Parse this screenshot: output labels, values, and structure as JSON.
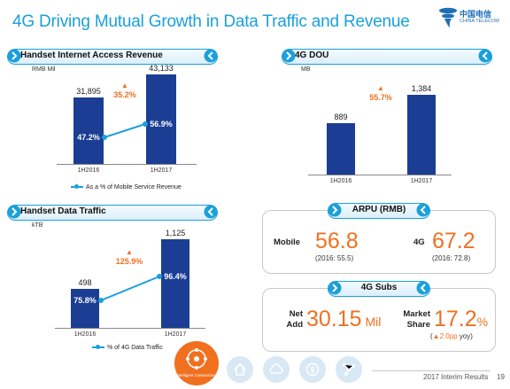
{
  "page": {
    "title": "4G Driving Mutual Growth in Data Traffic and Revenue",
    "logo_cn": "中国电信",
    "logo_en": "CHINA TELECOM",
    "footer_text": "2017 Interim Results",
    "page_number": "19",
    "badge_text": "Intelligent Connections"
  },
  "colors": {
    "title": "#1aa0dc",
    "bar": "#1b3e94",
    "line": "#1aa0dc",
    "accent": "#f07020"
  },
  "panels": {
    "revenue": {
      "title": "Handset Internet Access Revenue",
      "unit": "RMB Mil",
      "legend": "As a % of Mobile Service Revenue"
    },
    "dou": {
      "title": "4G DOU",
      "unit": "MB"
    },
    "traffic": {
      "title": "Handset Data Traffic",
      "unit": "kTB",
      "legend": "% of 4G Data Traffic"
    }
  },
  "arpu": {
    "title": "ARPU (RMB)",
    "mobile_label": "Mobile",
    "mobile_value": "56.8",
    "mobile_prev": "(2016: 55.5)",
    "g4_label": "4G",
    "g4_value": "67.2",
    "g4_prev": "(2016: 72.8)"
  },
  "subs": {
    "title": "4G Subs",
    "net_add_label_1": "Net",
    "net_add_label_2": "Add",
    "net_add_value": "30.15",
    "net_add_unit": "Mil",
    "share_label_1": "Market",
    "share_label_2": "Share",
    "share_value": "17.2",
    "share_unit": "%",
    "share_change": "2.0pp",
    "share_change_suffix": "yoy)",
    "share_change_prefix": "("
  },
  "chart_data": [
    {
      "type": "bar",
      "title": "Handset Internet Access Revenue",
      "ylabel": "RMB Mil",
      "categories": [
        "1H2016",
        "1H2017"
      ],
      "values": [
        31895,
        43133
      ],
      "value_labels": [
        "31,895",
        "43,133"
      ],
      "growth_label": "35.2%",
      "line_series": {
        "name": "As a % of Mobile Service Revenue",
        "values": [
          47.2,
          56.9
        ],
        "labels": [
          "47.2%",
          "56.9%"
        ]
      },
      "ylim": [
        0,
        50000
      ]
    },
    {
      "type": "bar",
      "title": "4G DOU",
      "ylabel": "MB",
      "categories": [
        "1H2016",
        "1H2017"
      ],
      "values": [
        889,
        1384
      ],
      "value_labels": [
        "889",
        "1,384"
      ],
      "growth_label": "55.7%",
      "ylim": [
        0,
        1500
      ]
    },
    {
      "type": "bar",
      "title": "Handset Data Traffic",
      "ylabel": "kTB",
      "categories": [
        "1H2016",
        "1H2017"
      ],
      "values": [
        498,
        1125
      ],
      "value_labels": [
        "498",
        "1,125"
      ],
      "growth_label": "125.9%",
      "line_series": {
        "name": "% of 4G Data Traffic",
        "values": [
          75.8,
          96.4
        ],
        "labels": [
          "75.8%",
          "96.4%"
        ]
      },
      "ylim": [
        0,
        1200
      ]
    }
  ]
}
